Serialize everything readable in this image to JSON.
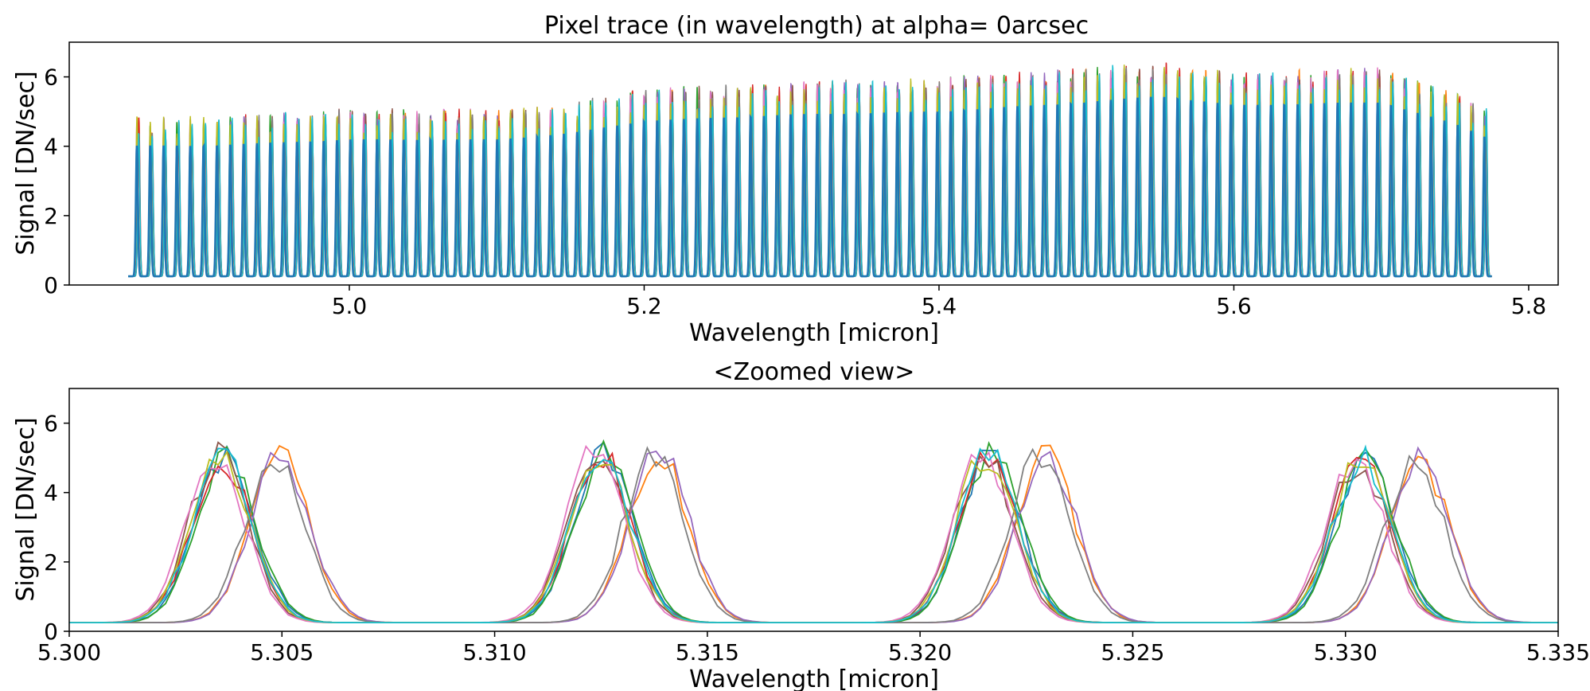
{
  "chart_data": [
    {
      "type": "line",
      "title": "Pixel trace (in wavelength) at alpha= 0arcsec",
      "xlabel": "Wavelength [micron]",
      "ylabel": "Signal [DN/sec]",
      "xlim": [
        4.81,
        5.82
      ],
      "ylim": [
        0,
        7
      ],
      "xticks": [
        5.0,
        5.2,
        5.4,
        5.6,
        5.8
      ],
      "xticklabels": [
        "5.0",
        "5.2",
        "5.4",
        "5.6",
        "5.8"
      ],
      "yticks": [
        0,
        2,
        4,
        6
      ],
      "yticklabels": [
        "0",
        "2",
        "4",
        "6"
      ],
      "grid": false,
      "legend": "none",
      "series_count": 10,
      "series_colors": [
        "#1f77b4",
        "#ff7f0e",
        "#2ca02c",
        "#d62728",
        "#9467bd",
        "#8c564b",
        "#e377c2",
        "#7f7f7f",
        "#bcbd22",
        "#17becf"
      ],
      "data_range_x": [
        4.85,
        5.775
      ],
      "peak_spacing": 0.00905,
      "peak_width_sigma": 0.0007,
      "baseline": 0.25,
      "envelope_x": [
        4.85,
        4.9,
        5.0,
        5.1,
        5.15,
        5.2,
        5.3,
        5.4,
        5.5,
        5.55,
        5.6,
        5.7,
        5.75,
        5.775
      ],
      "envelope_peak": [
        4.3,
        4.3,
        4.5,
        4.5,
        4.7,
        5.1,
        5.3,
        5.4,
        5.7,
        5.9,
        5.6,
        5.7,
        5.0,
        4.5
      ]
    },
    {
      "type": "line",
      "title": "<Zoomed view>",
      "xlabel": "Wavelength [micron]",
      "ylabel": "Signal [DN/sec]",
      "xlim": [
        5.3,
        5.335
      ],
      "ylim": [
        0,
        7
      ],
      "xticks": [
        5.3,
        5.305,
        5.31,
        5.315,
        5.32,
        5.325,
        5.33,
        5.335
      ],
      "xticklabels": [
        "5.300",
        "5.305",
        "5.310",
        "5.315",
        "5.320",
        "5.325",
        "5.330",
        "5.335"
      ],
      "yticks": [
        0,
        2,
        4,
        6
      ],
      "yticklabels": [
        "0",
        "2",
        "4",
        "6"
      ],
      "grid": false,
      "legend": "none",
      "series_count": 10,
      "baseline": 0.25,
      "peaks": [
        {
          "center_a": 5.3036,
          "center_b": 5.3048,
          "height": 4.8
        },
        {
          "center_a": 5.3125,
          "center_b": 5.3137,
          "height": 4.9
        },
        {
          "center_a": 5.3216,
          "center_b": 5.3228,
          "height": 4.9
        },
        {
          "center_a": 5.3304,
          "center_b": 5.3316,
          "height": 4.7
        }
      ],
      "peak_width_sigma": 0.0007
    }
  ]
}
